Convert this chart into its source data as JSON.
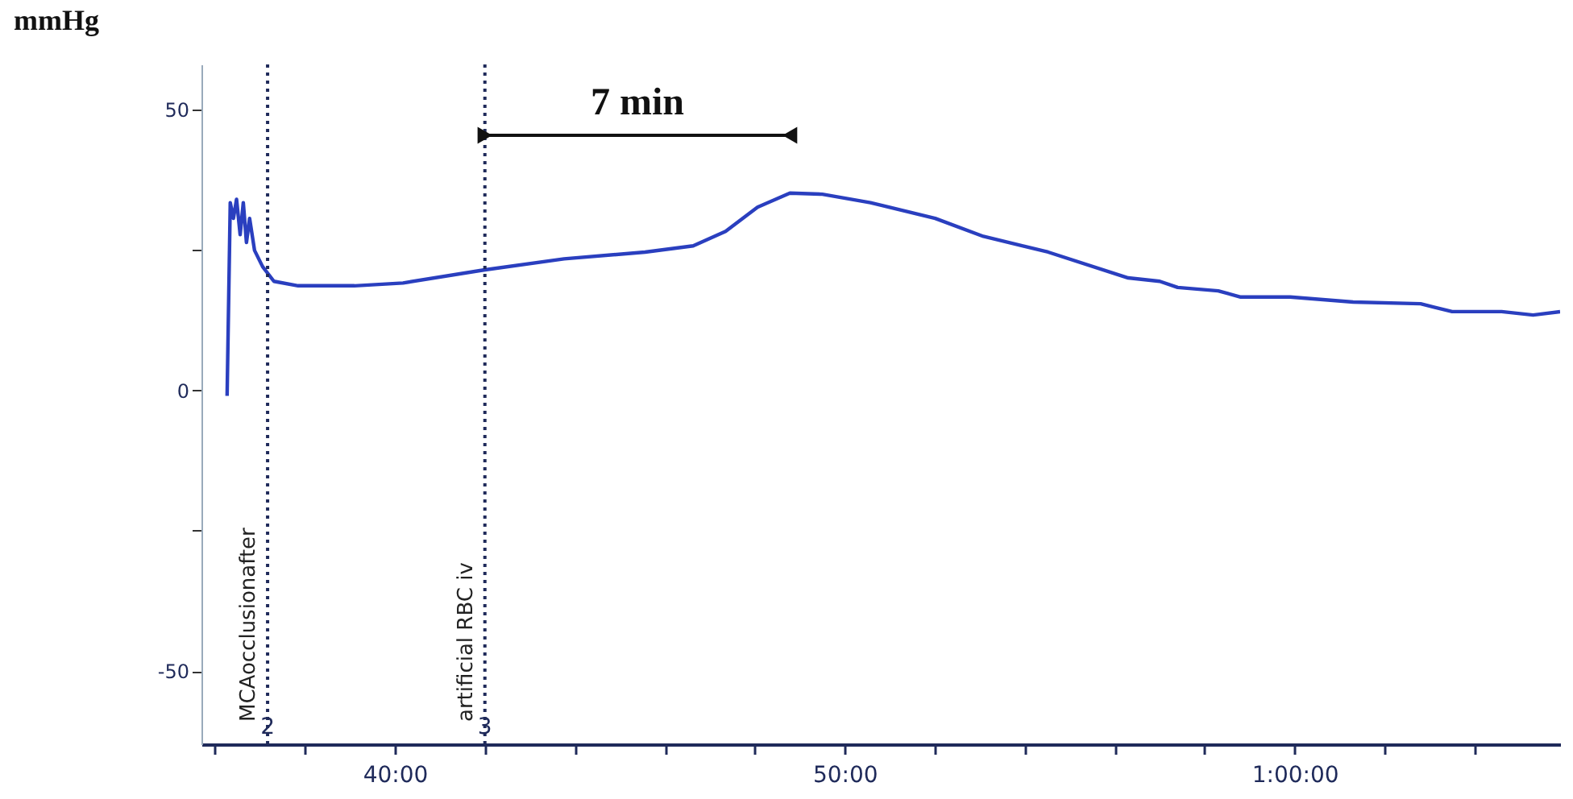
{
  "chart_data": {
    "type": "line",
    "ylabel": "mmHg",
    "x": [
      36.27,
      36.34,
      36.41,
      36.48,
      36.56,
      36.63,
      36.7,
      36.77,
      36.88,
      37.06,
      37.31,
      37.85,
      39.1,
      40.18,
      41.97,
      43.76,
      45.56,
      46.63,
      47.35,
      48.06,
      48.78,
      49.5,
      50.57,
      52.01,
      53.08,
      54.52,
      56.3,
      57.0,
      57.4,
      58.3,
      58.8,
      59.9,
      61.3,
      62.8,
      63.5,
      64.6,
      65.3,
      65.9
    ],
    "series": [
      {
        "color": "#2a3fbf",
        "values": [
          -1,
          33.4,
          30.6,
          34,
          27.7,
          33.4,
          26.3,
          30.6,
          24.9,
          22,
          19.4,
          18.6,
          18.6,
          19.1,
          21.4,
          23.4,
          24.6,
          25.7,
          28.3,
          32.6,
          35.1,
          34.9,
          33.4,
          30.6,
          27.4,
          24.6,
          20,
          19.4,
          18.3,
          17.7,
          16.6,
          16.6,
          15.7,
          15.4,
          14,
          14,
          13.4,
          14
        ]
      }
    ],
    "xlim": [
      35.7,
      65.9
    ],
    "xticks": [
      {
        "value": 36,
        "label": null
      },
      {
        "value": 38,
        "label": null
      },
      {
        "value": 40,
        "label": "40:00"
      },
      {
        "value": 42,
        "label": null
      },
      {
        "value": 44,
        "label": null
      },
      {
        "value": 46,
        "label": null
      },
      {
        "value": 48,
        "label": null
      },
      {
        "value": 50,
        "label": "50:00"
      },
      {
        "value": 52,
        "label": null
      },
      {
        "value": 54,
        "label": null
      },
      {
        "value": 56,
        "label": null
      },
      {
        "value": 58,
        "label": null
      },
      {
        "value": 60,
        "label": "1:00:00"
      },
      {
        "value": 62,
        "label": null
      },
      {
        "value": 64,
        "label": null
      }
    ],
    "ylim": [
      -63,
      58
    ],
    "yticks": [
      -50,
      {
        "value": -25,
        "label": null
      },
      0,
      {
        "value": 25,
        "label": null
      },
      50
    ],
    "ref_lines": [
      {
        "axis": "x",
        "value": 37.17,
        "label": "MCAocclusionafter",
        "color": "#1f2a5a",
        "line_style": "dotted"
      },
      {
        "axis": "x",
        "value": 42.0,
        "label": "artificial RBC iv",
        "color": "#1f2a5a",
        "line_style": "dotted"
      }
    ],
    "annotations": [
      {
        "text": "2",
        "x": 37.17,
        "y": -60
      },
      {
        "text": "3",
        "x": 42.0,
        "y": -60
      },
      "7 min"
    ],
    "grid": false
  }
}
